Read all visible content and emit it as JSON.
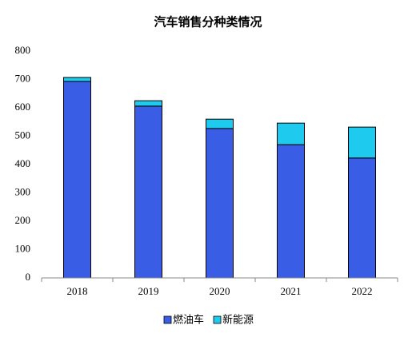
{
  "chart_data": {
    "type": "stacked_bar",
    "title": "汽车销售分种类情况",
    "categories": [
      "2018",
      "2019",
      "2020",
      "2021",
      "2022"
    ],
    "series": [
      {
        "name": "燃油车",
        "color": "#3a5de6",
        "values": [
          693,
          606,
          527,
          470,
          423
        ]
      },
      {
        "name": "新能源",
        "color": "#1ecbee",
        "values": [
          14,
          19,
          33,
          76,
          109
        ]
      }
    ],
    "ylim": [
      0,
      800
    ],
    "yticks": [
      0,
      100,
      200,
      300,
      400,
      500,
      600,
      700,
      800
    ],
    "grid": false
  }
}
